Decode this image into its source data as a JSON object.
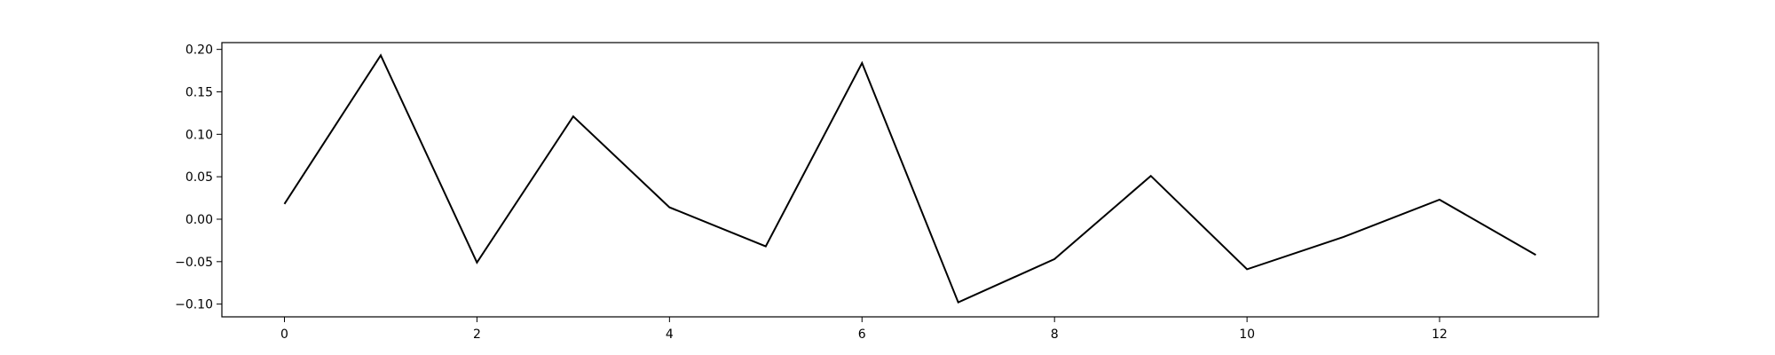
{
  "chart_data": {
    "type": "line",
    "title": "",
    "xlabel": "",
    "ylabel": "",
    "xlim": [
      -0.65,
      13.65
    ],
    "ylim": [
      -0.115,
      0.208
    ],
    "x_ticks": [
      0,
      2,
      4,
      6,
      8,
      10,
      12
    ],
    "x_tick_labels": [
      "0",
      "2",
      "4",
      "6",
      "8",
      "10",
      "12"
    ],
    "y_ticks": [
      -0.1,
      -0.05,
      0.0,
      0.05,
      0.1,
      0.15,
      0.2
    ],
    "y_tick_labels": [
      "−0.10",
      "−0.05",
      "0.00",
      "0.05",
      "0.10",
      "0.15",
      "0.20"
    ],
    "grid": false,
    "legend": "none",
    "series": [
      {
        "color": "#000000",
        "x": [
          0,
          1,
          2,
          3,
          4,
          5,
          6,
          7,
          8,
          9,
          10,
          11,
          12,
          13
        ],
        "y": [
          0.018,
          0.193,
          -0.051,
          0.121,
          0.014,
          -0.032,
          0.184,
          -0.098,
          -0.047,
          0.051,
          -0.059,
          -0.021,
          0.023,
          -0.042
        ]
      }
    ]
  }
}
